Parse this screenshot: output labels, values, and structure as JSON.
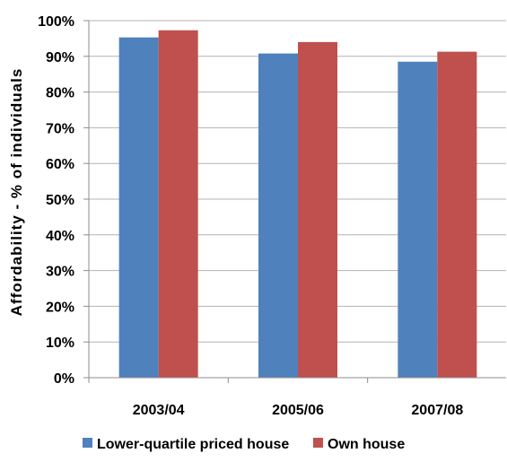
{
  "chart_data": {
    "type": "bar",
    "title": "",
    "xlabel": "",
    "ylabel": "Affordability - % of individuals",
    "ylim": [
      0,
      100
    ],
    "y_ticks": [
      "0%",
      "10%",
      "20%",
      "30%",
      "40%",
      "50%",
      "60%",
      "70%",
      "80%",
      "90%",
      "100%"
    ],
    "categories": [
      "2003/04",
      "2005/06",
      "2007/08"
    ],
    "series": [
      {
        "name": "Lower-quartile priced house",
        "values": [
          95.3,
          90.8,
          88.5
        ],
        "color": "#4F81BD"
      },
      {
        "name": "Own house",
        "values": [
          97.3,
          94.0,
          91.3
        ],
        "color": "#C0504D"
      }
    ],
    "grid": true,
    "gridline_color": "#B3B3B3",
    "legend_position": "bottom"
  }
}
